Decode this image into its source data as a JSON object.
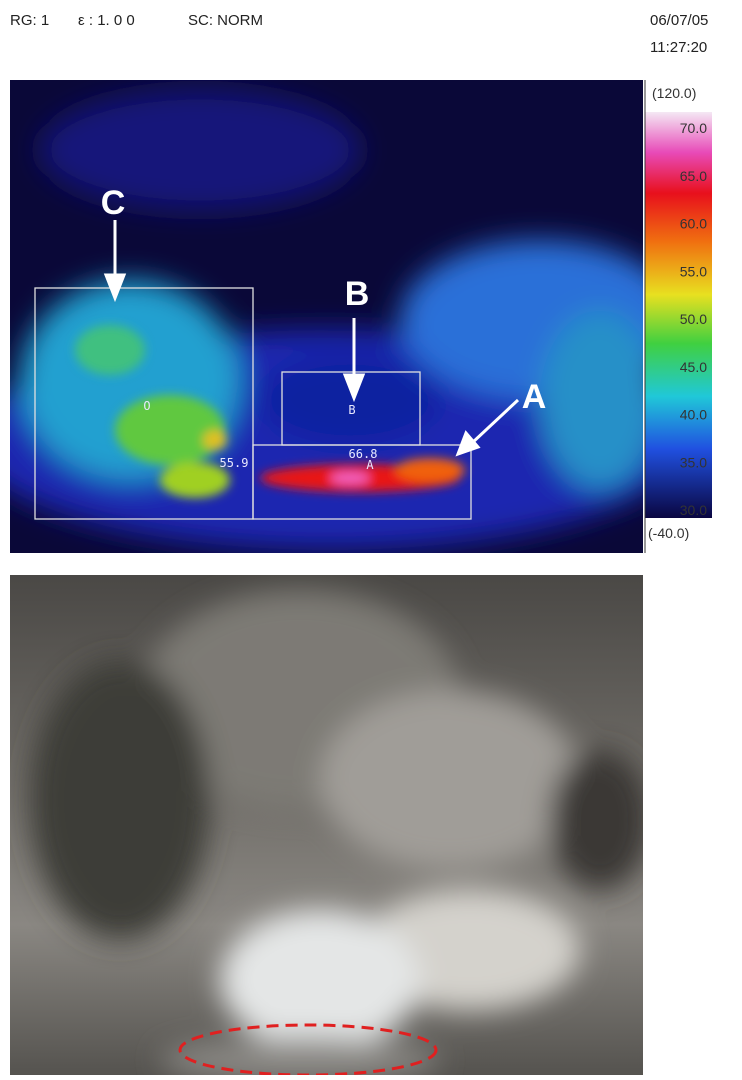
{
  "header": {
    "range": "RG: 1",
    "emissivity": "ε : 1. 0 0",
    "scale": "SC: NORM",
    "date": "06/07/05",
    "time": "11:27:20"
  },
  "thermal": {
    "labels": {
      "a": "A",
      "b": "B",
      "c": "C"
    },
    "box_markers": {
      "a": "A",
      "b": "B",
      "c": "O"
    },
    "readings": [
      "66.8",
      "55.9"
    ]
  },
  "colorbar": {
    "max_label": "(120.0)",
    "min_label": "(-40.0)",
    "ticks": [
      "70.0",
      "65.0",
      "60.0",
      "55.0",
      "50.0",
      "45.0",
      "40.0",
      "35.0",
      "30.0"
    ]
  }
}
